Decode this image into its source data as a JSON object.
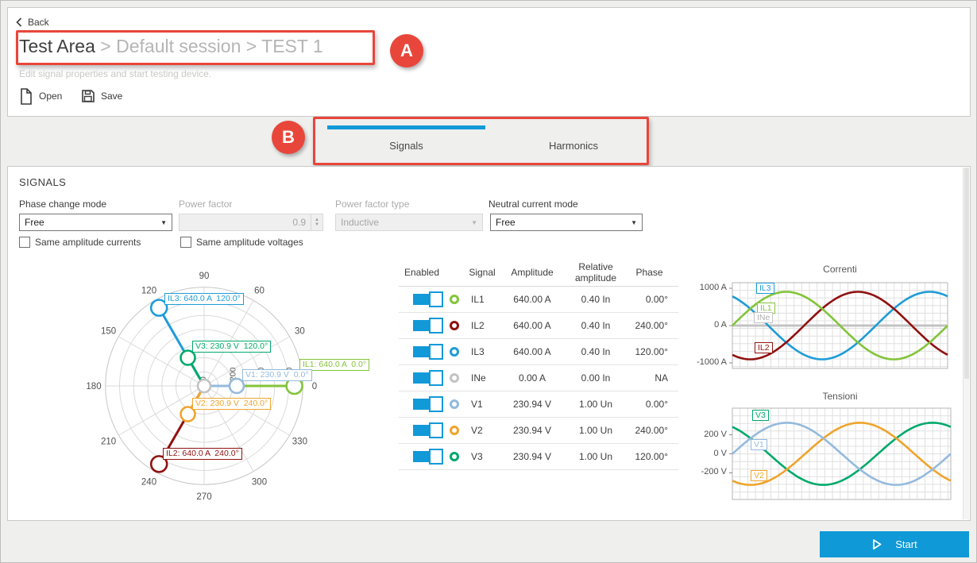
{
  "header": {
    "back_label": "Back",
    "breadcrumb": {
      "root": "Test Area",
      "sep1": " > ",
      "session": "Default session",
      "sep2": " > ",
      "test": "TEST 1"
    },
    "subtitle": "Edit signal properties and start testing device.",
    "open_label": "Open",
    "save_label": "Save"
  },
  "annotations": {
    "badge_a": "A",
    "badge_b": "B",
    "color": "#E8463A"
  },
  "tabs": {
    "signals": "Signals",
    "harmonics": "Harmonics",
    "active": "Signals"
  },
  "signals_section": {
    "title": "SIGNALS",
    "fields": [
      {
        "label": "Phase change mode",
        "value": "Free",
        "type": "select",
        "enabled": true
      },
      {
        "label": "Power factor",
        "value": "0.9",
        "type": "number",
        "enabled": false
      },
      {
        "label": "Power factor type",
        "value": "Inductive",
        "type": "select",
        "enabled": false
      },
      {
        "label": "Neutral current mode",
        "value": "Free",
        "type": "select",
        "enabled": true
      }
    ],
    "checkboxes": [
      {
        "label": "Same amplitude currents",
        "checked": false
      },
      {
        "label": "Same amplitude voltages",
        "checked": false
      }
    ]
  },
  "table": {
    "headers": {
      "enabled": "Enabled",
      "signal": "Signal",
      "amplitude": "Amplitude",
      "relative": "Relative amplitude",
      "phase": "Phase"
    },
    "rows": [
      {
        "enabled": true,
        "signal": "IL1",
        "color": "#83C43A",
        "amplitude": "640.00 A",
        "relative": "0.40 In",
        "phase": "0.00°"
      },
      {
        "enabled": true,
        "signal": "IL2",
        "color": "#8F1110",
        "amplitude": "640.00 A",
        "relative": "0.40 In",
        "phase": "240.00°"
      },
      {
        "enabled": true,
        "signal": "IL3",
        "color": "#1E9CD7",
        "amplitude": "640.00 A",
        "relative": "0.40 In",
        "phase": "120.00°"
      },
      {
        "enabled": true,
        "signal": "INe",
        "color": "#C3C3C3",
        "amplitude": "0.00 A",
        "relative": "0.00 In",
        "phase": "NA"
      },
      {
        "enabled": true,
        "signal": "V1",
        "color": "#94BADD",
        "amplitude": "230.94 V",
        "relative": "1.00 Un",
        "phase": "0.00°"
      },
      {
        "enabled": true,
        "signal": "V2",
        "color": "#EFA42C",
        "amplitude": "230.94 V",
        "relative": "1.00 Un",
        "phase": "240.00°"
      },
      {
        "enabled": true,
        "signal": "V3",
        "color": "#00A96B",
        "amplitude": "230.94 V",
        "relative": "1.00 Un",
        "phase": "120.00°"
      }
    ]
  },
  "chart_data": [
    {
      "type": "polar-phasor",
      "angle_ticks": [
        0,
        30,
        60,
        90,
        120,
        150,
        180,
        210,
        240,
        270,
        300,
        330
      ],
      "radial_ticks": [
        0,
        200,
        400,
        600
      ],
      "radial_max": 700,
      "vectors": [
        {
          "name": "IL3",
          "label": "IL3: 640.0 A  120.0°",
          "value": 640.0,
          "unit": "A",
          "angle": 120,
          "color": "#1E9CD7"
        },
        {
          "name": "IL2",
          "label": "IL2: 640.0 A  240.0°",
          "value": 640.0,
          "unit": "A",
          "angle": 240,
          "color": "#8F1110"
        },
        {
          "name": "IL1",
          "label": "IL1: 640.0 A  0.0°",
          "value": 640.0,
          "unit": "A",
          "angle": 0,
          "color": "#83C43A"
        },
        {
          "name": "V3",
          "label": "V3: 230.9 V  120.0°",
          "value": 230.9,
          "unit": "V",
          "angle": 120,
          "color": "#00A96B"
        },
        {
          "name": "V2",
          "label": "V2: 230.9 V  240.0°",
          "value": 230.9,
          "unit": "V",
          "angle": 240,
          "color": "#EFA42C"
        },
        {
          "name": "V1",
          "label": "V1: 230.9 V  0.0°",
          "value": 230.9,
          "unit": "V",
          "angle": 0,
          "color": "#94BADD"
        },
        {
          "name": "INe",
          "label": "",
          "value": 0,
          "unit": "A",
          "angle": 0,
          "color": "#C3C3C3"
        }
      ]
    },
    {
      "type": "line",
      "title": "Correnti",
      "x_degrees": [
        0,
        360
      ],
      "ylim": [
        -1150,
        1150
      ],
      "yticks": [
        {
          "label": "1000 A",
          "value": 1000
        },
        {
          "label": "0 A",
          "value": 0
        },
        {
          "label": "-1000 A",
          "value": -1000
        }
      ],
      "series": [
        {
          "name": "IL1",
          "amplitude": 905,
          "phase_deg": 0,
          "color": "#83C43A"
        },
        {
          "name": "IL2",
          "amplitude": 905,
          "phase_deg": 240,
          "color": "#8F1110"
        },
        {
          "name": "IL3",
          "amplitude": 905,
          "phase_deg": 120,
          "color": "#1E9CD7"
        },
        {
          "name": "INe",
          "amplitude": 0,
          "phase_deg": 0,
          "color": "#C3C3C3"
        }
      ]
    },
    {
      "type": "line",
      "title": "Tensioni",
      "x_degrees": [
        0,
        360
      ],
      "ylim": [
        -480,
        480
      ],
      "yticks": [
        {
          "label": "200 V",
          "value": 200
        },
        {
          "label": "0 V",
          "value": 0
        },
        {
          "label": "-200 V",
          "value": -200
        }
      ],
      "series": [
        {
          "name": "V1",
          "amplitude": 326.6,
          "phase_deg": 0,
          "color": "#94BADD"
        },
        {
          "name": "V2",
          "amplitude": 326.6,
          "phase_deg": 240,
          "color": "#EFA42C"
        },
        {
          "name": "V3",
          "amplitude": 326.6,
          "phase_deg": 120,
          "color": "#00A96B"
        }
      ]
    }
  ],
  "footer": {
    "start_label": "Start"
  },
  "colors": {
    "accent": "#1199D8",
    "annotation": "#E8463A"
  }
}
